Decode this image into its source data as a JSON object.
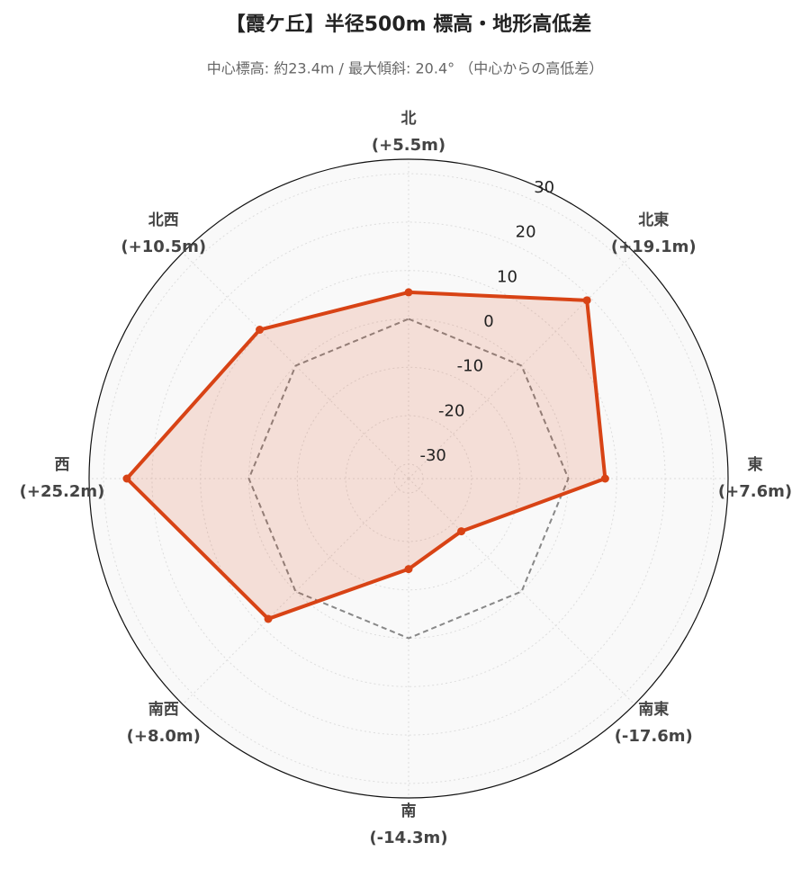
{
  "chart_data": {
    "type": "radar",
    "title": "【霞ケ丘】半径500m 標高・地形高低差",
    "subtitle": "中心標高: 約23.4m / 最大傾斜: 20.4°  （中心からの高低差）",
    "categories": [
      "北",
      "北東",
      "東",
      "南東",
      "南",
      "南西",
      "西",
      "北西"
    ],
    "values": [
      5.5,
      19.1,
      7.6,
      -17.6,
      -14.3,
      8.0,
      25.2,
      10.5
    ],
    "value_labels": [
      "(+5.5m)",
      "(+19.1m)",
      "(+7.6m)",
      "(-17.6m)",
      "(-14.3m)",
      "(+8.0m)",
      "(+25.2m)",
      "(+10.5m)"
    ],
    "color": "#d84315",
    "ylim": [
      -33,
      33
    ],
    "yticks": [
      -30,
      -20,
      -10,
      0,
      10,
      20,
      30
    ],
    "grid": true
  }
}
